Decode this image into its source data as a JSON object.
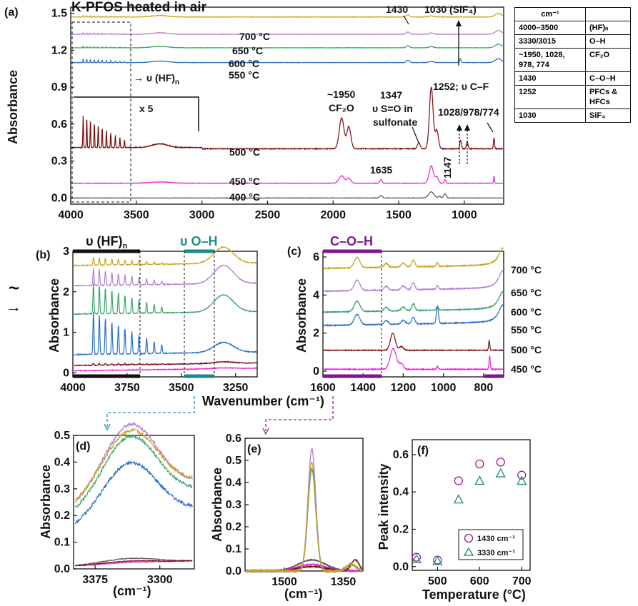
{
  "title": "K-PFOS heated in air",
  "colors": {
    "400": "#555555",
    "450": "#e62ad0",
    "500": "#7a0c0c",
    "550": "#2a70c2",
    "600": "#3aa56a",
    "650": "#b07ed6",
    "700": "#c9a21f",
    "bar_hf": "#111111",
    "bar_oh": "#1a8a8a",
    "bar_coh": "#7a1a8a",
    "arrow_d": "#1a9aaa",
    "arrow_e": "#8a2a8a"
  },
  "table": {
    "header": [
      "cm⁻¹",
      ""
    ],
    "rows": [
      [
        "4000–3500",
        "(HF)ₙ"
      ],
      [
        "3330/3015",
        "O–H"
      ],
      [
        "~1950, 1028, 978, 774",
        "CF₂O"
      ],
      [
        "1430",
        "C–O–H"
      ],
      [
        "1252",
        "PFCs & HFCs"
      ],
      [
        "1030",
        "SiF₄"
      ]
    ]
  },
  "panel_a": {
    "label": "(a)",
    "ylabel": "Absorbance",
    "yticks": [
      "0.0",
      "0.3",
      "0.6",
      "0.9",
      "1.2",
      "1.5"
    ],
    "xticks": [
      "4000",
      "3500",
      "3000",
      "2500",
      "2000",
      "1500",
      "1000"
    ],
    "temp_labels": [
      "700 °C",
      "650 °C",
      "600 °C",
      "550 °C",
      "500 °C",
      "450 °C",
      "400 °C"
    ],
    "annotations": {
      "hf": "→ υ (HF)",
      "hf_sub": "n",
      "x5": "x 5",
      "a1950": "~1950",
      "cf2o": "CF₂O",
      "a1347": "1347",
      "so": "υ S=O in",
      "sulfonate": "sulfonate",
      "a1252": "1252; υ C–F",
      "a1430": "1430",
      "a1030": "1030 (SiF₄)",
      "a1028": "1028/978/774",
      "a1635": "1635",
      "a1147": "1147"
    }
  },
  "panel_b": {
    "label": "(b)",
    "ylabel": "Absorbance",
    "yticks": [
      "0",
      "1",
      "2",
      "3"
    ],
    "xticks": [
      "4000",
      "3750",
      "3500",
      "3250"
    ],
    "bar_hf": "υ (HF)",
    "bar_hf_sub": "n",
    "bar_oh": "υ O–H"
  },
  "panel_c": {
    "label": "(c)",
    "ylabel": "Absorbance",
    "yticks": [
      "0",
      "2",
      "4",
      "6"
    ],
    "xticks": [
      "1600",
      "1400",
      "1200",
      "1000",
      "800"
    ],
    "bar_coh": "C–O–H",
    "temp_labels": [
      "700 °C",
      "650 °C",
      "600 °C",
      "550 °C",
      "500 °C",
      "450 °C"
    ]
  },
  "shared_xlabel": "Wavenumber (cm⁻¹)",
  "panel_d": {
    "label": "(d)",
    "ylabel": "Absorbance",
    "xlabel": "(cm⁻¹)",
    "yticks": [
      "0.0",
      "0.1",
      "0.2",
      "0.3",
      "0.4",
      "0.5"
    ],
    "xticks": [
      "3375",
      "3300"
    ]
  },
  "panel_e": {
    "label": "(e)",
    "ylabel": "Absorbance",
    "xlabel": "(cm⁻¹)",
    "yticks": [
      "0.0",
      "0.1",
      "0.2",
      "0.3",
      "0.4",
      "0.5",
      "0.6"
    ],
    "xticks": [
      "1500",
      "1350"
    ]
  },
  "panel_f": {
    "label": "(f)",
    "ylabel": "Peak intensity",
    "xlabel": "Temperature (°C)",
    "yticks": [
      "0.0",
      "0.2",
      "0.4",
      "0.6"
    ],
    "xticks": [
      "500",
      "600",
      "700"
    ],
    "legend": [
      "1430 cm⁻¹",
      "3330 cm⁻¹"
    ]
  },
  "left_marks": {
    "tilde": "~",
    "arrow": "→"
  },
  "chart_data": [
    {
      "type": "line",
      "panel": "a",
      "title": "K-PFOS heated in air",
      "xlabel": "",
      "ylabel": "Absorbance",
      "xlim": [
        4000,
        700
      ],
      "ylim": [
        -0.05,
        1.55
      ],
      "series": [
        {
          "name": "400 °C",
          "offset": 0.0
        },
        {
          "name": "450 °C",
          "offset": 0.12
        },
        {
          "name": "500 °C",
          "offset": 0.4
        },
        {
          "name": "550 °C",
          "offset": 1.1
        },
        {
          "name": "600 °C",
          "offset": 1.22
        },
        {
          "name": "650 °C",
          "offset": 1.33
        },
        {
          "name": "700 °C",
          "offset": 1.47
        }
      ]
    },
    {
      "type": "line",
      "panel": "b",
      "ylabel": "Absorbance",
      "xlim": [
        4000,
        3150
      ],
      "ylim": [
        -0.1,
        3.0
      ],
      "series": [
        {
          "name": "450 °C",
          "offset": 0.05
        },
        {
          "name": "500 °C",
          "offset": 0.18
        },
        {
          "name": "550 °C",
          "offset": 0.45
        },
        {
          "name": "600 °C",
          "offset": 1.45
        },
        {
          "name": "650 °C",
          "offset": 2.15
        },
        {
          "name": "700 °C",
          "offset": 2.65
        }
      ]
    },
    {
      "type": "line",
      "panel": "c",
      "ylabel": "Absorbance",
      "xlim": [
        1600,
        700
      ],
      "ylim": [
        -0.3,
        6.3
      ],
      "series": [
        {
          "name": "450 °C",
          "offset": 0.1
        },
        {
          "name": "500 °C",
          "offset": 1.1
        },
        {
          "name": "550 °C",
          "offset": 2.4
        },
        {
          "name": "600 °C",
          "offset": 3.1
        },
        {
          "name": "650 °C",
          "offset": 4.2
        },
        {
          "name": "700 °C",
          "offset": 5.4
        }
      ]
    },
    {
      "type": "line",
      "panel": "d",
      "ylabel": "Absorbance",
      "xlabel": "(cm⁻¹)",
      "xlim": [
        3400,
        3260
      ],
      "ylim": [
        0,
        0.5
      ],
      "series": [
        {
          "name": "400 °C",
          "peak": 0.03,
          "base": 0.01
        },
        {
          "name": "450 °C",
          "peak": 0.015,
          "base": 0.01
        },
        {
          "name": "500 °C",
          "peak": 0.02,
          "base": 0.01
        },
        {
          "name": "550 °C",
          "peak": 0.36,
          "base": 0.14
        },
        {
          "name": "600 °C",
          "peak": 0.45,
          "base": 0.19
        },
        {
          "name": "650 °C",
          "peak": 0.49,
          "base": 0.21
        },
        {
          "name": "700 °C",
          "peak": 0.47,
          "base": 0.22
        }
      ]
    },
    {
      "type": "line",
      "panel": "e",
      "ylabel": "Absorbance",
      "xlabel": "(cm⁻¹)",
      "xlim": [
        1600,
        1300
      ],
      "ylim": [
        0,
        0.6
      ],
      "series": [
        {
          "name": "400 °C",
          "peak": 0.05
        },
        {
          "name": "450 °C",
          "peak": 0.03
        },
        {
          "name": "500 °C",
          "peak": 0.02
        },
        {
          "name": "550 °C",
          "peak": 0.46
        },
        {
          "name": "600 °C",
          "peak": 0.46
        },
        {
          "name": "650 °C",
          "peak": 0.55
        },
        {
          "name": "700 °C",
          "peak": 0.49
        }
      ]
    },
    {
      "type": "scatter",
      "panel": "f",
      "xlabel": "Temperature (°C)",
      "ylabel": "Peak intensity",
      "xlim": [
        440,
        720
      ],
      "ylim": [
        -0.02,
        0.68
      ],
      "x": [
        450,
        500,
        550,
        600,
        650,
        700
      ],
      "series": [
        {
          "name": "1430 cm⁻¹",
          "marker": "circle",
          "values": [
            0.05,
            0.035,
            0.46,
            0.55,
            0.56,
            0.49
          ]
        },
        {
          "name": "3330 cm⁻¹",
          "marker": "triangle",
          "values": [
            0.04,
            0.03,
            0.36,
            0.46,
            0.5,
            0.46
          ]
        }
      ],
      "legend": "bottom-right"
    }
  ]
}
